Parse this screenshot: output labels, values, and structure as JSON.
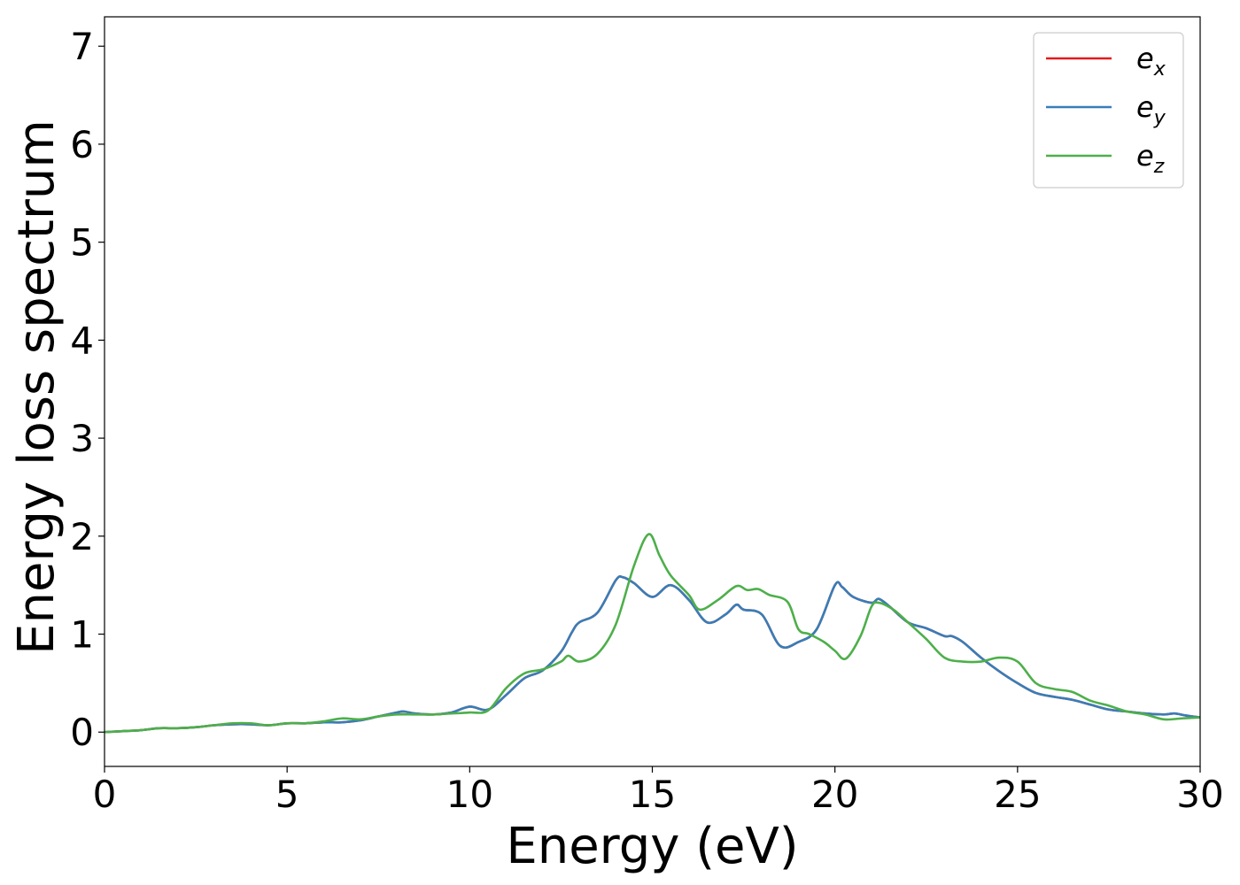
{
  "chart_data": {
    "type": "line",
    "title": "",
    "xlabel": "Energy (eV)",
    "ylabel": "Energy loss spectrum",
    "xlim": [
      0,
      30
    ],
    "ylim": [
      -0.35,
      7.3
    ],
    "xticks": [
      0,
      5,
      10,
      15,
      20,
      25,
      30
    ],
    "yticks": [
      0,
      1,
      2,
      3,
      4,
      5,
      6,
      7
    ],
    "grid": false,
    "legend_position": "top-right",
    "series": [
      {
        "name": "e_x",
        "label_main": "e",
        "label_sub": "x",
        "color": "#e41a1c",
        "x": [
          0,
          0.5,
          1,
          1.5,
          2,
          2.5,
          3,
          3.5,
          4,
          4.5,
          5,
          5.5,
          6,
          6.5,
          7,
          7.5,
          8,
          8.2,
          8.5,
          9,
          9.5,
          10,
          10.5,
          11,
          11.5,
          12,
          12.5,
          12.8,
          13,
          13.5,
          14,
          14.2,
          14.5,
          15,
          15.5,
          16,
          16.5,
          17,
          17.3,
          17.5,
          18,
          18.5,
          19,
          19.5,
          20,
          20.2,
          20.5,
          21,
          21.2,
          21.5,
          22,
          22.5,
          23,
          23.2,
          23.5,
          24,
          24.5,
          25,
          25.5,
          26,
          26.5,
          27,
          27.5,
          28,
          28.5,
          29,
          29.3,
          29.6,
          30
        ],
        "y": [
          0,
          0.01,
          0.02,
          0.04,
          0.04,
          0.05,
          0.07,
          0.08,
          0.08,
          0.07,
          0.09,
          0.09,
          0.1,
          0.1,
          0.12,
          0.16,
          0.2,
          0.21,
          0.19,
          0.18,
          0.2,
          0.26,
          0.23,
          0.38,
          0.55,
          0.63,
          0.82,
          1.02,
          1.12,
          1.22,
          1.55,
          1.58,
          1.52,
          1.38,
          1.5,
          1.35,
          1.12,
          1.2,
          1.3,
          1.25,
          1.2,
          0.88,
          0.92,
          1.05,
          1.5,
          1.48,
          1.38,
          1.32,
          1.36,
          1.28,
          1.12,
          1.06,
          0.98,
          0.98,
          0.92,
          0.76,
          0.62,
          0.5,
          0.4,
          0.36,
          0.33,
          0.28,
          0.23,
          0.21,
          0.19,
          0.18,
          0.19,
          0.17,
          0.15
        ]
      },
      {
        "name": "e_y",
        "label_main": "e",
        "label_sub": "y",
        "color": "#377eb8",
        "x": [
          0,
          0.5,
          1,
          1.5,
          2,
          2.5,
          3,
          3.5,
          4,
          4.5,
          5,
          5.5,
          6,
          6.5,
          7,
          7.5,
          8,
          8.2,
          8.5,
          9,
          9.5,
          10,
          10.5,
          11,
          11.5,
          12,
          12.5,
          12.8,
          13,
          13.5,
          14,
          14.2,
          14.5,
          15,
          15.5,
          16,
          16.5,
          17,
          17.3,
          17.5,
          18,
          18.5,
          19,
          19.5,
          20,
          20.2,
          20.5,
          21,
          21.2,
          21.5,
          22,
          22.5,
          23,
          23.2,
          23.5,
          24,
          24.5,
          25,
          25.5,
          26,
          26.5,
          27,
          27.5,
          28,
          28.5,
          29,
          29.3,
          29.6,
          30
        ],
        "y": [
          0,
          0.01,
          0.02,
          0.04,
          0.04,
          0.05,
          0.07,
          0.08,
          0.08,
          0.07,
          0.09,
          0.09,
          0.1,
          0.1,
          0.12,
          0.16,
          0.2,
          0.21,
          0.19,
          0.18,
          0.2,
          0.26,
          0.23,
          0.38,
          0.55,
          0.63,
          0.82,
          1.02,
          1.12,
          1.22,
          1.55,
          1.58,
          1.52,
          1.38,
          1.5,
          1.35,
          1.12,
          1.2,
          1.3,
          1.25,
          1.2,
          0.88,
          0.92,
          1.05,
          1.5,
          1.48,
          1.38,
          1.32,
          1.36,
          1.28,
          1.12,
          1.06,
          0.98,
          0.98,
          0.92,
          0.76,
          0.62,
          0.5,
          0.4,
          0.36,
          0.33,
          0.28,
          0.23,
          0.21,
          0.19,
          0.18,
          0.19,
          0.17,
          0.15
        ]
      },
      {
        "name": "e_z",
        "label_main": "e",
        "label_sub": "z",
        "color": "#4daf4a",
        "x": [
          0,
          0.5,
          1,
          1.5,
          2,
          2.5,
          3,
          3.5,
          4,
          4.5,
          5,
          5.5,
          6,
          6.5,
          7,
          7.5,
          8,
          8.5,
          9,
          9.5,
          10,
          10.5,
          11,
          11.5,
          12,
          12.5,
          12.7,
          13,
          13.5,
          14,
          14.5,
          14.9,
          15.2,
          15.5,
          16,
          16.3,
          16.8,
          17.3,
          17.6,
          17.9,
          18.2,
          18.7,
          19,
          19.3,
          19.7,
          20,
          20.3,
          20.7,
          21,
          21.2,
          21.6,
          22,
          22.5,
          23,
          23.5,
          24,
          24.5,
          25,
          25.5,
          26,
          26.5,
          27,
          27.5,
          28,
          28.5,
          29,
          29.5,
          30
        ],
        "y": [
          0,
          0.01,
          0.02,
          0.04,
          0.04,
          0.05,
          0.07,
          0.09,
          0.09,
          0.07,
          0.09,
          0.09,
          0.11,
          0.14,
          0.13,
          0.16,
          0.18,
          0.18,
          0.18,
          0.19,
          0.2,
          0.22,
          0.45,
          0.6,
          0.64,
          0.72,
          0.78,
          0.72,
          0.8,
          1.1,
          1.7,
          2.02,
          1.8,
          1.6,
          1.4,
          1.25,
          1.35,
          1.49,
          1.45,
          1.46,
          1.4,
          1.33,
          1.05,
          1.0,
          0.92,
          0.83,
          0.75,
          0.98,
          1.28,
          1.32,
          1.25,
          1.12,
          0.95,
          0.76,
          0.72,
          0.72,
          0.76,
          0.72,
          0.5,
          0.44,
          0.41,
          0.32,
          0.27,
          0.21,
          0.18,
          0.13,
          0.14,
          0.15
        ]
      }
    ]
  }
}
